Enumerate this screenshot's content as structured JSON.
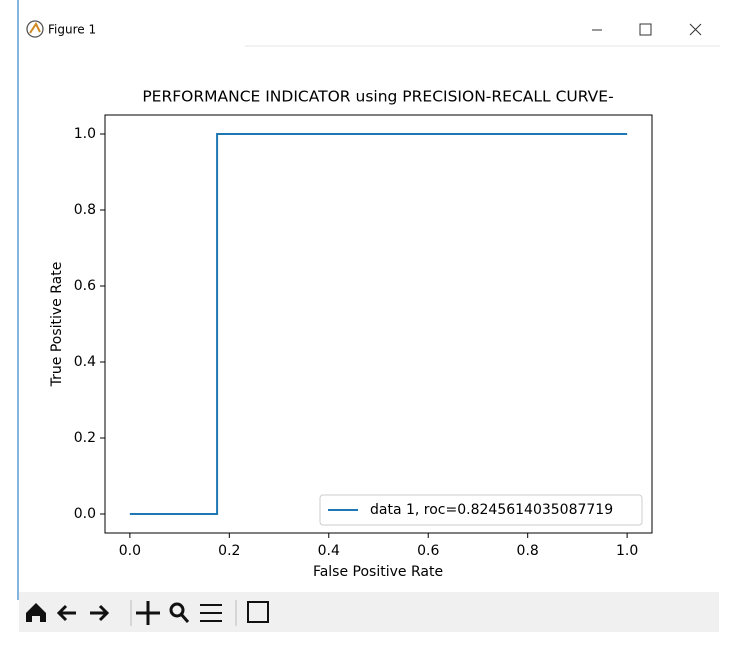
{
  "window": {
    "title": "Figure 1"
  },
  "chart_data": {
    "type": "line",
    "title": "PERFORMANCE INDICATOR using PRECISION-RECALL CURVE-",
    "x_label": "False Positive Rate",
    "y_label": "True Positive Rate",
    "x": [
      0,
      0.1754,
      0.1754,
      1
    ],
    "series": [
      {
        "name": "data 1, roc=0.8245614035087719",
        "color": "#1f77b4",
        "values": [
          0,
          0,
          1,
          1
        ]
      }
    ],
    "xlim": [
      -0.05,
      1.05
    ],
    "ylim": [
      -0.05,
      1.05
    ],
    "xticks": [
      {
        "value": 0,
        "label": "0.0"
      },
      {
        "value": 0.2,
        "label": "0.2"
      },
      {
        "value": 0.4,
        "label": "0.4"
      },
      {
        "value": 0.6,
        "label": "0.6"
      },
      {
        "value": 0.8,
        "label": "0.8"
      },
      {
        "value": 1,
        "label": "1.0"
      }
    ],
    "yticks": [
      {
        "value": 0,
        "label": "0.0"
      },
      {
        "value": 0.2,
        "label": "0.2"
      },
      {
        "value": 0.4,
        "label": "0.4"
      },
      {
        "value": 0.6,
        "label": "0.6"
      },
      {
        "value": 0.8,
        "label": "0.8"
      },
      {
        "value": 1,
        "label": "1.0"
      }
    ],
    "legend": "lower right",
    "grid": false
  }
}
